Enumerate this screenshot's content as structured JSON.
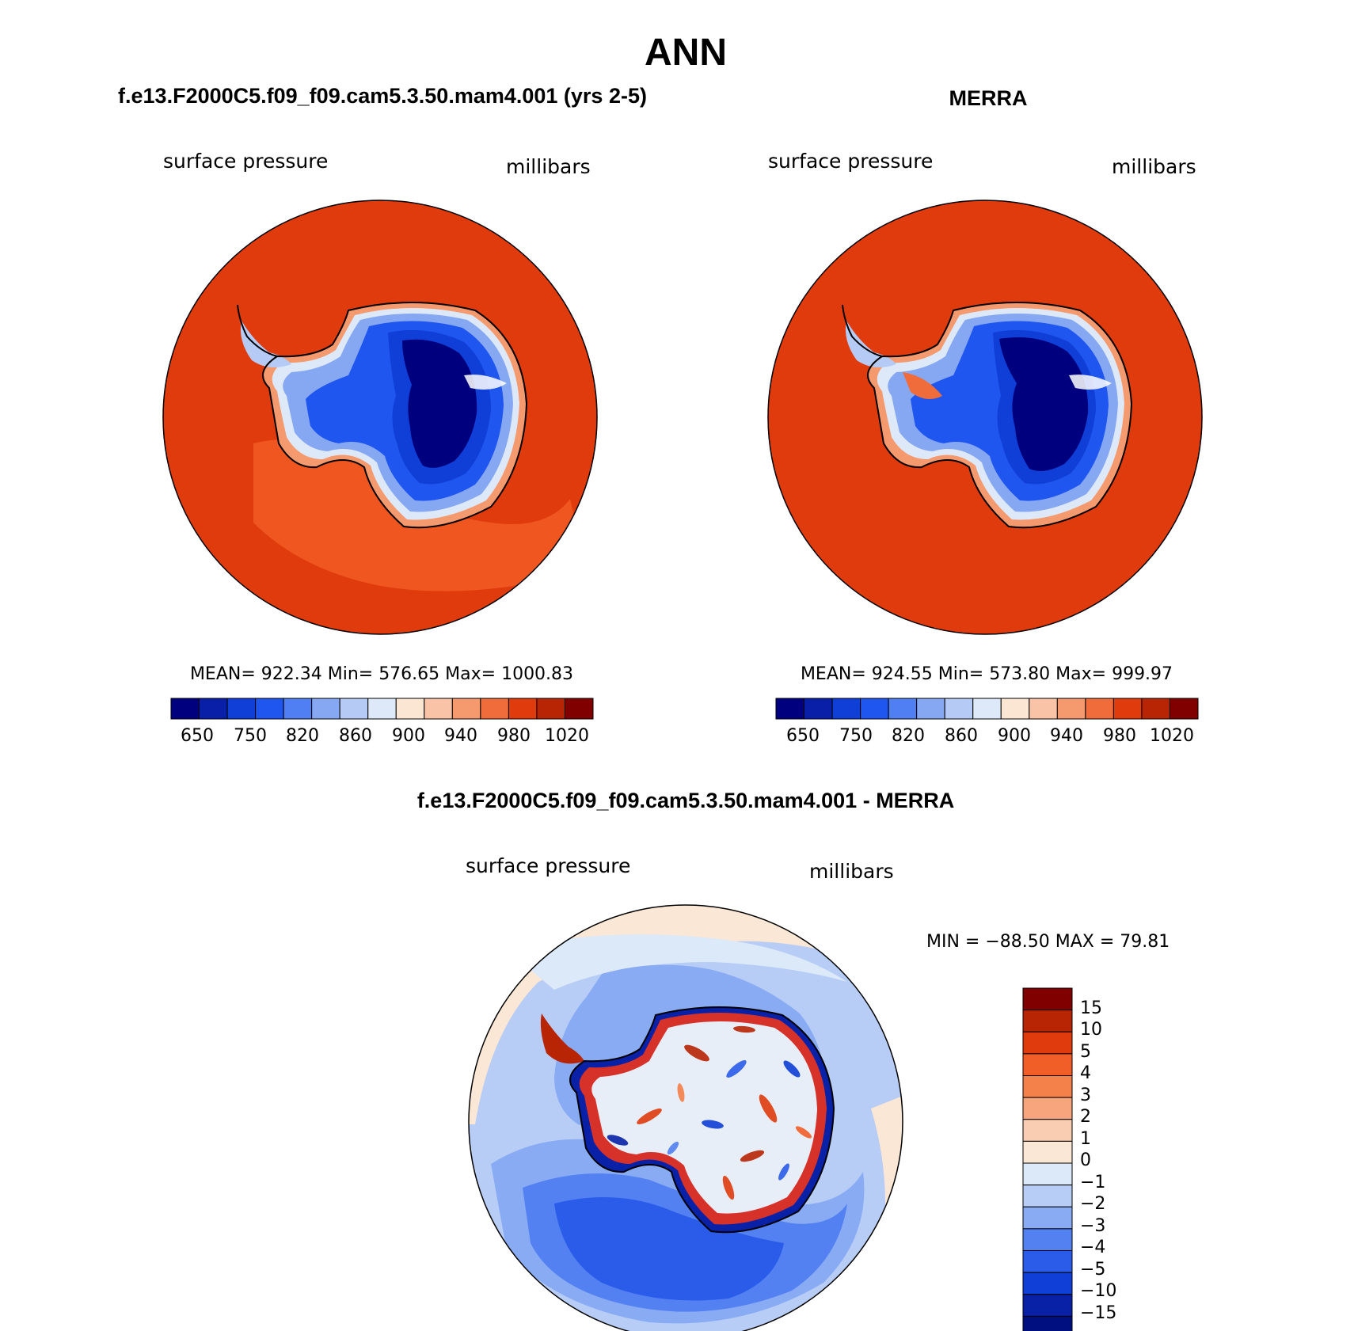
{
  "title": "ANN",
  "colors": {
    "model_scale": [
      "#00007f",
      "#0a1fa8",
      "#0f3fd6",
      "#2056f0",
      "#4f7ff2",
      "#86a8f3",
      "#b5cbf6",
      "#dde9f8",
      "#fbe5d3",
      "#f8c3a6",
      "#f5996e",
      "#f06c3b",
      "#e03b0c",
      "#b82505",
      "#800000"
    ],
    "diff_scale": [
      "#800000",
      "#b82505",
      "#e03b0c",
      "#f25e28",
      "#f4804a",
      "#f7a57d",
      "#f9cdb1",
      "#fbe7d5",
      "#dce9f8",
      "#b7cdf6",
      "#88abf3",
      "#5381f1",
      "#2a5ce9",
      "#0f3fd6",
      "#0821a6",
      "#000f80"
    ]
  },
  "panels": {
    "model": {
      "title": "f.e13.F2000C5.f09_f09.cam5.3.50.mam4.001 (yrs 2-5)",
      "variable": "surface pressure",
      "units": "millibars",
      "stats": "MEAN= 922.34   Min= 576.65   Max= 1000.83",
      "colorbar_labels": [
        "650",
        "750",
        "820",
        "860",
        "900",
        "940",
        "980",
        "1020"
      ]
    },
    "obs": {
      "title": "MERRA",
      "variable": "surface pressure",
      "units": "millibars",
      "stats": "MEAN= 924.55   Min= 573.80   Max= 999.97",
      "colorbar_labels": [
        "650",
        "750",
        "820",
        "860",
        "900",
        "940",
        "980",
        "1020"
      ]
    },
    "diff": {
      "title": "f.e13.F2000C5.f09_f09.cam5.3.50.mam4.001 - MERRA",
      "variable": "surface pressure",
      "units": "millibars",
      "stats": "MIN = −88.50 MAX =   79.81",
      "colorbar_labels": [
        "15",
        "10",
        "5",
        "4",
        "3",
        "2",
        "1",
        "0",
        "−1",
        "−2",
        "−3",
        "−4",
        "−5",
        "−10",
        "−15"
      ]
    }
  }
}
